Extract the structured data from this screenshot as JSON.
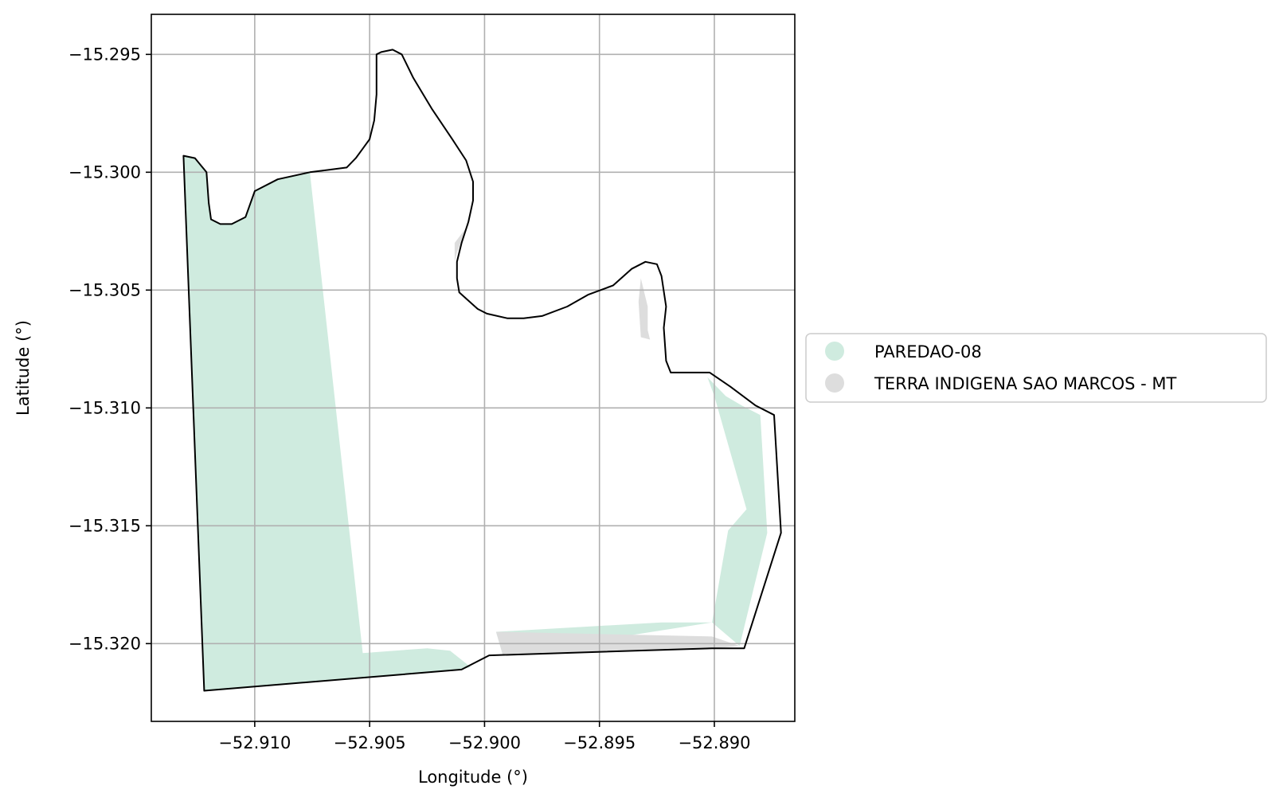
{
  "chart_data": {
    "type": "map",
    "xlabel": "Longitude (°)",
    "ylabel": "Latitude (°)",
    "xlim": [
      -52.9145,
      -52.8865
    ],
    "ylim": [
      -15.3233,
      -15.2933
    ],
    "xticks": [
      -52.91,
      -52.905,
      -52.9,
      -52.895,
      -52.89
    ],
    "xtick_labels": [
      "−52.910",
      "−52.905",
      "−52.900",
      "−52.895",
      "−52.890"
    ],
    "yticks": [
      -15.295,
      -15.3,
      -15.305,
      -15.31,
      -15.315,
      -15.32
    ],
    "ytick_labels": [
      "−15.295",
      "−15.300",
      "−15.305",
      "−15.310",
      "−15.315",
      "−15.320"
    ],
    "grid": true,
    "legend_position": "right",
    "legend": [
      {
        "label": "PAREDAO-08",
        "color": "#cfebdf"
      },
      {
        "label": "TERRA INDIGENA SAO MARCOS - MT",
        "color": "#dddddd"
      }
    ],
    "layers": [
      {
        "name": "PAREDAO-08",
        "color": "#cfebdf",
        "polygons": [
          [
            [
              -52.9131,
              -15.2993
            ],
            [
              -52.9126,
              -15.2994
            ],
            [
              -52.9121,
              -15.3
            ],
            [
              -52.912,
              -15.3013
            ],
            [
              -52.9119,
              -15.302
            ],
            [
              -52.9115,
              -15.3022
            ],
            [
              -52.911,
              -15.3022
            ],
            [
              -52.9104,
              -15.3019
            ],
            [
              -52.91,
              -15.3008
            ],
            [
              -52.909,
              -15.3003
            ],
            [
              -52.9076,
              -15.3
            ],
            [
              -52.9053,
              -15.3204
            ],
            [
              -52.9025,
              -15.3202
            ],
            [
              -52.9015,
              -15.3203
            ],
            [
              -52.9006,
              -15.321
            ],
            [
              -52.901,
              -15.3211
            ],
            [
              -52.9122,
              -15.322
            ]
          ],
          [
            [
              -52.8995,
              -15.3195
            ],
            [
              -52.8923,
              -15.3191
            ],
            [
              -52.8901,
              -15.3191
            ],
            [
              -52.8889,
              -15.3201
            ],
            [
              -52.8877,
              -15.3153
            ],
            [
              -52.888,
              -15.3103
            ],
            [
              -52.8888,
              -15.3099
            ],
            [
              -52.8895,
              -15.3095
            ],
            [
              -52.8903,
              -15.3087
            ],
            [
              -52.89,
              -15.3095
            ],
            [
              -52.8886,
              -15.3143
            ],
            [
              -52.8894,
              -15.3152
            ],
            [
              -52.8901,
              -15.3191
            ],
            [
              -52.8992,
              -15.3205
            ]
          ]
        ]
      },
      {
        "name": "TERRA INDIGENA SAO MARCOS - MT",
        "color": "#dddddd",
        "polygons": [
          [
            [
              -52.8995,
              -15.3195
            ],
            [
              -52.8901,
              -15.3197
            ],
            [
              -52.8889,
              -15.3201
            ],
            [
              -52.89,
              -15.3202
            ],
            [
              -52.8992,
              -15.3205
            ]
          ],
          [
            [
              -52.9006,
              -15.3021
            ],
            [
              -52.9013,
              -15.303
            ],
            [
              -52.9013,
              -15.3038
            ],
            [
              -52.9012,
              -15.3034
            ],
            [
              -52.9008,
              -15.3024
            ]
          ],
          [
            [
              -52.8932,
              -15.3045
            ],
            [
              -52.8929,
              -15.3057
            ],
            [
              -52.8929,
              -15.3067
            ],
            [
              -52.8928,
              -15.3071
            ],
            [
              -52.8932,
              -15.307
            ],
            [
              -52.8933,
              -15.3055
            ]
          ]
        ]
      }
    ],
    "boundary": [
      [
        -52.9131,
        -15.2993
      ],
      [
        -52.9126,
        -15.2994
      ],
      [
        -52.9121,
        -15.3
      ],
      [
        -52.912,
        -15.3013
      ],
      [
        -52.9119,
        -15.302
      ],
      [
        -52.9115,
        -15.3022
      ],
      [
        -52.911,
        -15.3022
      ],
      [
        -52.9104,
        -15.3019
      ],
      [
        -52.91,
        -15.3008
      ],
      [
        -52.909,
        -15.3003
      ],
      [
        -52.9076,
        -15.3
      ],
      [
        -52.9068,
        -15.2999
      ],
      [
        -52.906,
        -15.2998
      ],
      [
        -52.9056,
        -15.2994
      ],
      [
        -52.9053,
        -15.299
      ],
      [
        -52.905,
        -15.2986
      ],
      [
        -52.9048,
        -15.2978
      ],
      [
        -52.9047,
        -15.2967
      ],
      [
        -52.9047,
        -15.2962
      ],
      [
        -52.9047,
        -15.295
      ],
      [
        -52.9045,
        -15.2949
      ],
      [
        -52.904,
        -15.2948
      ],
      [
        -52.9036,
        -15.295
      ],
      [
        -52.9031,
        -15.296
      ],
      [
        -52.9023,
        -15.2973
      ],
      [
        -52.9014,
        -15.2986
      ],
      [
        -52.9008,
        -15.2995
      ],
      [
        -52.9005,
        -15.3004
      ],
      [
        -52.9005,
        -15.3012
      ],
      [
        -52.9007,
        -15.3021
      ],
      [
        -52.901,
        -15.303
      ],
      [
        -52.9012,
        -15.3038
      ],
      [
        -52.9012,
        -15.3045
      ],
      [
        -52.9011,
        -15.3051
      ],
      [
        -52.9003,
        -15.3058
      ],
      [
        -52.8999,
        -15.306
      ],
      [
        -52.899,
        -15.3062
      ],
      [
        -52.8983,
        -15.3062
      ],
      [
        -52.8975,
        -15.3061
      ],
      [
        -52.8964,
        -15.3057
      ],
      [
        -52.8955,
        -15.3052
      ],
      [
        -52.8944,
        -15.3048
      ],
      [
        -52.8936,
        -15.3041
      ],
      [
        -52.893,
        -15.3038
      ],
      [
        -52.8925,
        -15.3039
      ],
      [
        -52.8923,
        -15.3044
      ],
      [
        -52.8921,
        -15.3057
      ],
      [
        -52.8922,
        -15.3066
      ],
      [
        -52.8921,
        -15.308
      ],
      [
        -52.8919,
        -15.3085
      ],
      [
        -52.8913,
        -15.3085
      ],
      [
        -52.8902,
        -15.3085
      ],
      [
        -52.8893,
        -15.3091
      ],
      [
        -52.8882,
        -15.3099
      ],
      [
        -52.8874,
        -15.3103
      ],
      [
        -52.8871,
        -15.3153
      ],
      [
        -52.8887,
        -15.3202
      ],
      [
        -52.8901,
        -15.3202
      ],
      [
        -52.8998,
        -15.3205
      ],
      [
        -52.901,
        -15.3211
      ],
      [
        -52.9122,
        -15.322
      ],
      [
        -52.9131,
        -15.2993
      ]
    ]
  }
}
